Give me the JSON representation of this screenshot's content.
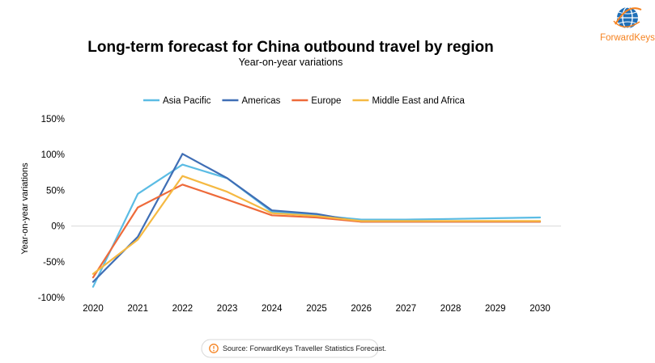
{
  "logo": {
    "text": "ForwardKeys",
    "color": "#f58220",
    "globe_color": "#1e6fb8",
    "icon": "globe-icon"
  },
  "source": {
    "text": "Source: ForwardKeys Traveller Statistics Forecast.",
    "icon": "info-icon",
    "icon_color": "#f58220"
  },
  "chart_data": {
    "type": "line",
    "title": "Long-term forecast for China outbound travel by region",
    "subtitle": "Year-on-year variations",
    "xlabel": "",
    "ylabel": "Year-on-year variations",
    "x": [
      "2020",
      "2021",
      "2022",
      "2023",
      "2024",
      "2025",
      "2026",
      "2027",
      "2028",
      "2029",
      "2030"
    ],
    "ylim": [
      -100,
      150
    ],
    "yticks": [
      150,
      100,
      50,
      0,
      -50,
      -100
    ],
    "ytick_labels": [
      "150%",
      "100%",
      "50%",
      "0%",
      "-50%",
      "-100%"
    ],
    "grid": "zero line only",
    "legend_position": "top",
    "series": [
      {
        "name": "Asia Pacific",
        "color": "#5bbce4",
        "values": [
          -85,
          45,
          86,
          67,
          20,
          15,
          9,
          9,
          10,
          11,
          12
        ]
      },
      {
        "name": "Americas",
        "color": "#3f6eb5",
        "values": [
          -78,
          -15,
          101,
          67,
          22,
          17,
          6,
          6,
          6,
          6,
          6
        ]
      },
      {
        "name": "Europe",
        "color": "#ee6a3a",
        "values": [
          -72,
          26,
          58,
          37,
          15,
          12,
          6,
          6,
          6,
          6,
          6
        ]
      },
      {
        "name": "Middle East and Africa",
        "color": "#f5b942",
        "values": [
          -67,
          -19,
          70,
          48,
          18,
          14,
          7,
          7,
          7,
          7,
          7
        ]
      }
    ]
  }
}
